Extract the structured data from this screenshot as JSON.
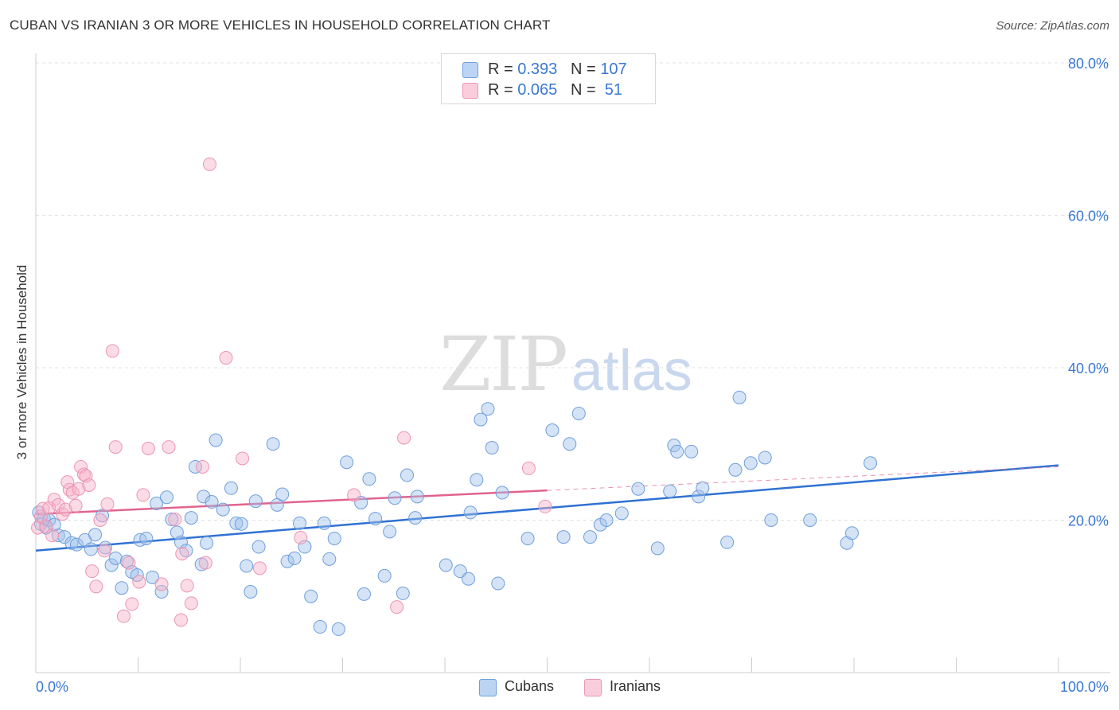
{
  "title": "CUBAN VS IRANIAN 3 OR MORE VEHICLES IN HOUSEHOLD CORRELATION CHART",
  "source": "Source: ZipAtlas.com",
  "watermark": {
    "zip": "ZIP",
    "atlas": "atlas"
  },
  "legend_top": {
    "rows": [
      {
        "r_label": "R = ",
        "r_value": "0.393",
        "n_label": "N = ",
        "n_value": "107",
        "color": "#a9c8ef"
      },
      {
        "r_label": "R = ",
        "r_value": "0.065",
        "n_label": "N = ",
        "n_value": " 51",
        "color": "#f6b9cc"
      }
    ]
  },
  "legend_bottom": [
    {
      "label": "Cubans",
      "color": "#a9c8ef"
    },
    {
      "label": "Iranians",
      "color": "#f6b9cc"
    }
  ],
  "colors": {
    "cuban_fill": "rgba(160,193,236,0.45)",
    "cuban_stroke": "#6f9fdc",
    "iranian_fill": "rgba(246,178,200,0.45)",
    "iranian_stroke": "#ec95b3",
    "cuban_line": "#2f72d2",
    "iranian_line": "#e0648f",
    "tick_label": "#3a78d4",
    "grid": "#e0e0e0"
  },
  "chart_data": {
    "type": "scatter",
    "title": "CUBAN VS IRANIAN 3 OR MORE VEHICLES IN HOUSEHOLD CORRELATION CHART",
    "xlabel": "",
    "ylabel": "3 or more Vehicles in Household",
    "xlim": [
      0,
      100
    ],
    "ylim": [
      0,
      80
    ],
    "x_tick_labels": [
      "0.0%",
      "100.0%"
    ],
    "y_ticks": [
      20,
      40,
      60,
      80
    ],
    "y_tick_labels": [
      "20.0%",
      "40.0%",
      "60.0%",
      "80.0%"
    ],
    "grid": true,
    "legend_position": "top-center",
    "series": [
      {
        "name": "Cubans",
        "points": [
          [
            0.3,
            21.0
          ],
          [
            0.5,
            19.5
          ],
          [
            0.8,
            20.2
          ],
          [
            1.0,
            19.0
          ],
          [
            1.3,
            20.0
          ],
          [
            1.8,
            19.4
          ],
          [
            2.2,
            18.0
          ],
          [
            2.8,
            17.8
          ],
          [
            3.5,
            17.0
          ],
          [
            4.0,
            16.8
          ],
          [
            4.8,
            17.4
          ],
          [
            5.4,
            16.2
          ],
          [
            5.8,
            18.1
          ],
          [
            6.5,
            20.6
          ],
          [
            6.8,
            16.4
          ],
          [
            7.4,
            14.1
          ],
          [
            7.8,
            15.0
          ],
          [
            8.4,
            11.1
          ],
          [
            8.9,
            14.6
          ],
          [
            9.4,
            13.2
          ],
          [
            9.9,
            12.8
          ],
          [
            10.2,
            17.4
          ],
          [
            10.8,
            17.6
          ],
          [
            11.4,
            12.5
          ],
          [
            11.8,
            22.2
          ],
          [
            12.3,
            10.6
          ],
          [
            12.8,
            23.0
          ],
          [
            13.3,
            20.1
          ],
          [
            13.8,
            18.4
          ],
          [
            14.2,
            17.1
          ],
          [
            14.7,
            16.0
          ],
          [
            15.2,
            20.3
          ],
          [
            15.6,
            27.0
          ],
          [
            16.2,
            14.2
          ],
          [
            16.4,
            23.1
          ],
          [
            16.7,
            17.0
          ],
          [
            17.2,
            22.4
          ],
          [
            17.6,
            30.5
          ],
          [
            18.3,
            21.4
          ],
          [
            19.1,
            24.2
          ],
          [
            19.6,
            19.6
          ],
          [
            20.1,
            19.5
          ],
          [
            20.6,
            14.0
          ],
          [
            21.0,
            10.6
          ],
          [
            21.5,
            22.5
          ],
          [
            21.8,
            16.5
          ],
          [
            23.2,
            30.0
          ],
          [
            23.6,
            22.0
          ],
          [
            24.1,
            23.4
          ],
          [
            24.6,
            14.6
          ],
          [
            25.3,
            15.0
          ],
          [
            25.8,
            19.6
          ],
          [
            26.3,
            16.5
          ],
          [
            26.9,
            10.0
          ],
          [
            27.8,
            6.0
          ],
          [
            28.2,
            19.6
          ],
          [
            28.7,
            14.9
          ],
          [
            29.2,
            17.6
          ],
          [
            29.6,
            5.7
          ],
          [
            30.4,
            27.6
          ],
          [
            31.8,
            22.3
          ],
          [
            32.1,
            10.3
          ],
          [
            32.6,
            25.4
          ],
          [
            33.2,
            20.2
          ],
          [
            34.1,
            12.7
          ],
          [
            34.6,
            18.5
          ],
          [
            35.1,
            22.9
          ],
          [
            35.9,
            10.4
          ],
          [
            36.3,
            25.9
          ],
          [
            37.1,
            20.3
          ],
          [
            37.3,
            23.1
          ],
          [
            40.1,
            14.1
          ],
          [
            41.5,
            13.3
          ],
          [
            42.3,
            12.3
          ],
          [
            42.5,
            21.0
          ],
          [
            43.1,
            25.3
          ],
          [
            43.5,
            33.2
          ],
          [
            44.2,
            34.6
          ],
          [
            44.6,
            29.5
          ],
          [
            45.2,
            11.7
          ],
          [
            45.6,
            23.6
          ],
          [
            48.1,
            17.6
          ],
          [
            50.5,
            31.8
          ],
          [
            51.6,
            17.8
          ],
          [
            52.2,
            30.0
          ],
          [
            53.1,
            34.0
          ],
          [
            54.2,
            17.8
          ],
          [
            55.2,
            19.4
          ],
          [
            55.8,
            20.0
          ],
          [
            57.3,
            20.9
          ],
          [
            58.9,
            24.1
          ],
          [
            60.8,
            16.3
          ],
          [
            62.0,
            23.8
          ],
          [
            62.4,
            29.8
          ],
          [
            62.7,
            29.0
          ],
          [
            64.1,
            29.0
          ],
          [
            64.8,
            23.1
          ],
          [
            65.2,
            24.2
          ],
          [
            67.6,
            17.1
          ],
          [
            68.4,
            26.6
          ],
          [
            68.8,
            36.1
          ],
          [
            69.9,
            27.5
          ],
          [
            71.3,
            28.2
          ],
          [
            71.9,
            20.0
          ],
          [
            75.7,
            20.0
          ],
          [
            79.3,
            17.0
          ],
          [
            79.8,
            18.3
          ],
          [
            81.6,
            27.5
          ]
        ],
        "trendline": {
          "x": [
            0,
            100
          ],
          "y": [
            16.0,
            27.2
          ]
        }
      },
      {
        "name": "Iranians",
        "points": [
          [
            0.2,
            19.0
          ],
          [
            0.5,
            20.5
          ],
          [
            0.7,
            21.5
          ],
          [
            1.0,
            19.2
          ],
          [
            1.3,
            21.6
          ],
          [
            1.6,
            18.0
          ],
          [
            1.8,
            22.7
          ],
          [
            2.2,
            22.0
          ],
          [
            2.6,
            20.8
          ],
          [
            2.9,
            21.4
          ],
          [
            3.1,
            25.0
          ],
          [
            3.3,
            24.0
          ],
          [
            3.6,
            23.6
          ],
          [
            3.9,
            21.9
          ],
          [
            4.2,
            24.1
          ],
          [
            4.4,
            27.0
          ],
          [
            4.7,
            26.0
          ],
          [
            4.9,
            25.8
          ],
          [
            5.2,
            24.6
          ],
          [
            5.5,
            13.3
          ],
          [
            5.9,
            11.3
          ],
          [
            6.3,
            20.0
          ],
          [
            6.7,
            16.0
          ],
          [
            7.0,
            22.1
          ],
          [
            7.5,
            42.2
          ],
          [
            7.8,
            29.6
          ],
          [
            8.6,
            7.4
          ],
          [
            9.1,
            14.4
          ],
          [
            9.4,
            9.0
          ],
          [
            10.1,
            11.9
          ],
          [
            10.5,
            23.3
          ],
          [
            11.0,
            29.4
          ],
          [
            12.3,
            11.6
          ],
          [
            13.0,
            29.6
          ],
          [
            13.6,
            20.1
          ],
          [
            14.2,
            6.9
          ],
          [
            14.3,
            15.6
          ],
          [
            14.8,
            11.4
          ],
          [
            15.2,
            9.1
          ],
          [
            16.3,
            27.0
          ],
          [
            16.6,
            14.4
          ],
          [
            17.0,
            66.7
          ],
          [
            18.6,
            41.3
          ],
          [
            20.2,
            28.1
          ],
          [
            21.9,
            13.7
          ],
          [
            25.9,
            17.7
          ],
          [
            31.1,
            23.3
          ],
          [
            35.3,
            8.6
          ],
          [
            36.0,
            30.8
          ],
          [
            48.2,
            26.8
          ],
          [
            49.8,
            21.8
          ]
        ],
        "trendline": {
          "x": [
            0,
            50
          ],
          "y": [
            20.8,
            23.9
          ]
        },
        "trendline_dashed_extension": {
          "x": [
            50,
            100
          ],
          "y": [
            23.9,
            27.0
          ]
        }
      }
    ]
  }
}
